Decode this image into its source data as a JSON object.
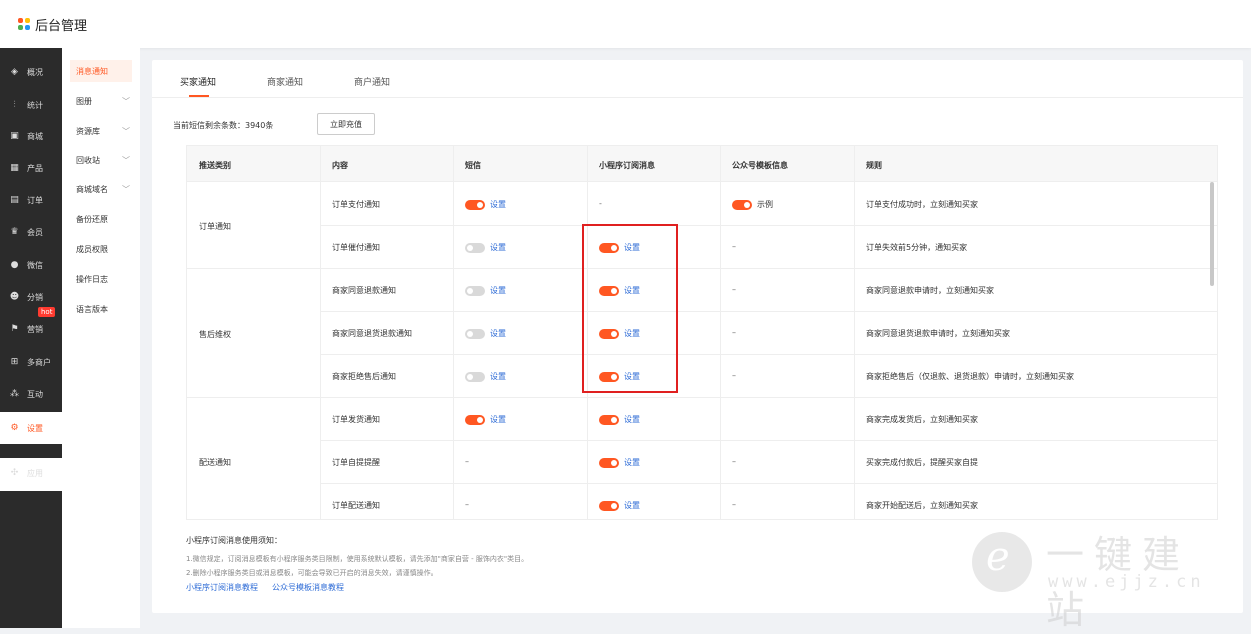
{
  "app": {
    "title": "后台管理"
  },
  "sidebar": {
    "items": [
      {
        "label": "概况",
        "icon": "layers-icon"
      },
      {
        "label": "统计",
        "icon": "chart-icon"
      },
      {
        "label": "商城",
        "icon": "shop-icon"
      },
      {
        "label": "产品",
        "icon": "grid-icon"
      },
      {
        "label": "订单",
        "icon": "order-icon"
      },
      {
        "label": "会员",
        "icon": "crown-icon"
      },
      {
        "label": "微信",
        "icon": "wechat-icon"
      },
      {
        "label": "分销",
        "icon": "users-icon"
      },
      {
        "label": "营销",
        "icon": "flag-icon",
        "badge": "hot"
      },
      {
        "label": "多商户",
        "icon": "store-icon"
      },
      {
        "label": "互动",
        "icon": "interact-icon"
      },
      {
        "label": "设置",
        "icon": "gear-icon",
        "active": true
      },
      {
        "label": "应用",
        "icon": "apps-icon"
      }
    ]
  },
  "subnav": {
    "items": [
      {
        "label": "消息通知",
        "active": true
      },
      {
        "label": "图册",
        "chevron": true
      },
      {
        "label": "资源库",
        "chevron": true
      },
      {
        "label": "回收站",
        "chevron": true
      },
      {
        "label": "商城域名",
        "chevron": true
      },
      {
        "label": "备份还原"
      },
      {
        "label": "成员权限"
      },
      {
        "label": "操作日志"
      },
      {
        "label": "语言版本"
      }
    ]
  },
  "tabs": [
    {
      "label": "买家通知",
      "active": true
    },
    {
      "label": "商家通知"
    },
    {
      "label": "商户通知"
    }
  ],
  "balance": {
    "label": "当前短信剩余条数：3940条",
    "button": "立即充值"
  },
  "table": {
    "headers": [
      "推送类别",
      "内容",
      "短信",
      "小程序订阅消息",
      "公众号模板信息",
      "规则"
    ],
    "categories": [
      "订单通知",
      "售后维权",
      "配送通知"
    ],
    "rows": [
      {
        "content": "订单支付通知",
        "sms": "on",
        "mini": "-",
        "official": "on",
        "official_label": "示例",
        "rule": "订单支付成功时，立刻通知买家"
      },
      {
        "content": "订单催付通知",
        "sms": "off",
        "mini": "on",
        "official": "-",
        "rule": "订单失效前5分钟，通知买家"
      },
      {
        "content": "商家同意退款通知",
        "sms": "off",
        "mini": "on",
        "official": "-",
        "rule": "商家同意退款申请时，立刻通知买家"
      },
      {
        "content": "商家同意退货退款通知",
        "sms": "off",
        "mini": "on",
        "official": "-",
        "rule": "商家同意退货退款申请时，立刻通知买家"
      },
      {
        "content": "商家拒绝售后通知",
        "sms": "off",
        "mini": "on",
        "official": "-",
        "rule": "商家拒绝售后（仅退款、退货退款）申请时，立刻通知买家"
      },
      {
        "content": "订单发货通知",
        "sms": "on",
        "mini": "on",
        "official": "",
        "rule": "商家完成发货后，立刻通知买家"
      },
      {
        "content": "订单自提提醒",
        "sms": "-",
        "mini": "on",
        "official": "-",
        "rule": "买家完成付款后，提醒买家自提"
      },
      {
        "content": "订单配送通知",
        "sms": "-",
        "mini": "on",
        "official": "-",
        "rule": "商家开始配送后，立刻通知买家"
      }
    ],
    "setting_label": "设置",
    "dash": "-",
    "emdash": "–"
  },
  "notes": {
    "title": "小程序订阅消息使用须知：",
    "line1": "1.微信规定，订阅消息模板有小程序服务类目限制，使用系统默认模板，请先添加\"商家自营 - 服饰内衣\"类目。",
    "line2": "2.删除小程序服务类目或消息模板，可能会导致已开启的消息失效，请谨慎操作。",
    "link1": "小程序订阅消息教程",
    "link2": "公众号模板消息教程"
  },
  "watermark": {
    "cn": "一键建站",
    "url": "www.ejjz.cn",
    "letter": "e"
  },
  "colors": {
    "accent": "#ff5722",
    "link": "#2d6bd6",
    "highlight": "#e02020"
  }
}
